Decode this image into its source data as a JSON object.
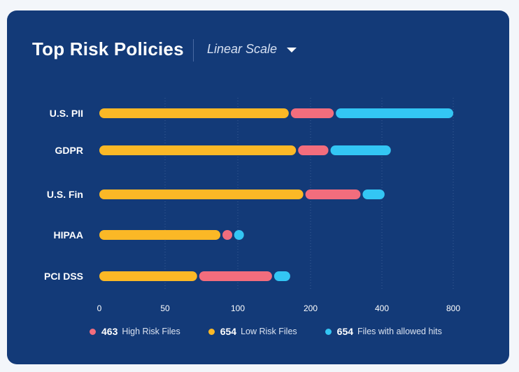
{
  "header": {
    "title": "Top Risk Policies",
    "scale_label": "Linear Scale"
  },
  "legend": [
    {
      "count": "463",
      "label": "High Risk Files",
      "color": "#f26d7d"
    },
    {
      "count": "654",
      "label": "Low Risk Files",
      "color": "#fbb826"
    },
    {
      "count": "654",
      "label": "Files with allowed hits",
      "color": "#33c6f4"
    }
  ],
  "chart_data": {
    "type": "bar",
    "orientation": "horizontal",
    "stacked": true,
    "title": "Top Risk Policies",
    "axis_scale": "Linear Scale",
    "x_ticks": [
      "0",
      "50",
      "100",
      "200",
      "400",
      "800"
    ],
    "categories": [
      "U.S. PII",
      "GDPR",
      "U.S. Fin",
      "HIPAA",
      "PCI DSS"
    ],
    "series": [
      {
        "name": "Low Risk Files",
        "color": "#fbb826",
        "values": [
          170,
          180,
          190,
          88,
          72
        ]
      },
      {
        "name": "High Risk Files",
        "color": "#f26d7d",
        "values": [
          95,
          70,
          150,
          8,
          75
        ]
      },
      {
        "name": "Files with allowed hits",
        "color": "#33c6f4",
        "values": [
          535,
          200,
          75,
          8,
          25
        ]
      }
    ]
  }
}
